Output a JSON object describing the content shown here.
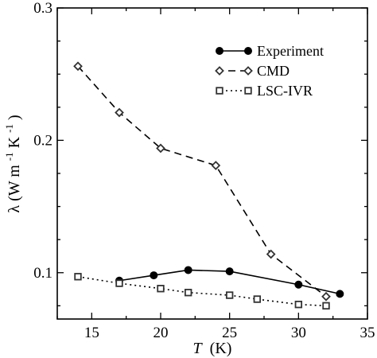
{
  "chart_data": {
    "type": "line",
    "xlabel": "T",
    "xlabel_unit": "(K)",
    "ylabel": "λ (W m-1 K-1)",
    "ylabel_parts": {
      "lambda": "λ (W m",
      "exp1": "-1",
      "mid": " K",
      "exp2": "-1",
      "close": ")"
    },
    "xlim": [
      12.5,
      35
    ],
    "ylim": [
      0.065,
      0.3
    ],
    "xticks": [
      15,
      20,
      25,
      30,
      35
    ],
    "yticks": [
      0.1,
      0.2,
      0.3
    ],
    "ytick_labels": [
      "0.1",
      "0.2",
      "0.3"
    ],
    "legend_position": "top-right",
    "grid": false,
    "series": [
      {
        "name": "Experiment",
        "line": "solid",
        "marker": "filled-circle",
        "x": [
          17,
          19.5,
          22,
          25,
          30,
          33
        ],
        "y": [
          0.094,
          0.098,
          0.102,
          0.101,
          0.091,
          0.084
        ]
      },
      {
        "name": "CMD",
        "line": "dashed",
        "marker": "open-diamond",
        "x": [
          14,
          17,
          20,
          24,
          28,
          32
        ],
        "y": [
          0.256,
          0.221,
          0.194,
          0.181,
          0.114,
          0.082
        ]
      },
      {
        "name": "LSC-IVR",
        "line": "dotted",
        "marker": "open-square",
        "x": [
          14,
          17,
          20,
          22,
          25,
          27,
          30,
          32
        ],
        "y": [
          0.097,
          0.092,
          0.088,
          0.085,
          0.083,
          0.08,
          0.076,
          0.075
        ]
      }
    ]
  }
}
